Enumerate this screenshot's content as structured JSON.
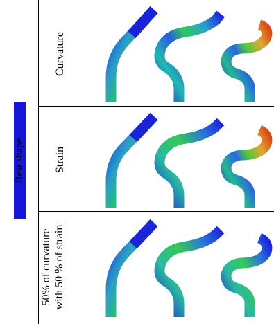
{
  "rest_shape": {
    "label": "Rest shape",
    "color": "#1616d8"
  },
  "rows": [
    {
      "label_lines": [
        "Curvature"
      ]
    },
    {
      "label_lines": [
        "Strain"
      ]
    },
    {
      "label_lines": [
        "50% of curvature",
        "with 50 % of strain"
      ]
    }
  ],
  "colormap": {
    "low": "#1a24d6",
    "mid": "#22c06a",
    "high": "#e8c020",
    "peak": "#d83a10"
  }
}
